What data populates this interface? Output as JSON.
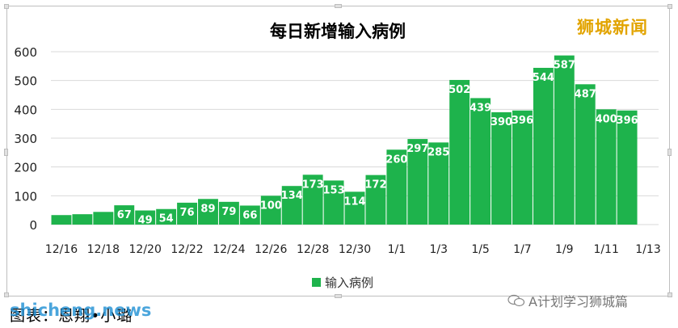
{
  "chart_data": {
    "type": "bar",
    "title": "每日新增输入病例",
    "categories": [
      "12/16",
      "12/17",
      "12/18",
      "12/19",
      "12/20",
      "12/21",
      "12/22",
      "12/23",
      "12/24",
      "12/25",
      "12/26",
      "12/27",
      "12/28",
      "12/29",
      "12/30",
      "12/31",
      "1/1",
      "1/2",
      "1/3",
      "1/4",
      "1/5",
      "1/6",
      "1/7",
      "1/8",
      "1/9",
      "1/10",
      "1/11",
      "1/12",
      "1/13"
    ],
    "x_tick_labels": [
      "12/16",
      "12/18",
      "12/20",
      "12/22",
      "12/24",
      "12/26",
      "12/28",
      "12/30",
      "1/1",
      "1/3",
      "1/5",
      "1/7",
      "1/9",
      "1/11",
      "1/13"
    ],
    "series": [
      {
        "name": "输入病例",
        "color": "#1eb34c",
        "values": [
          33,
          36,
          44,
          67,
          49,
          54,
          76,
          89,
          79,
          66,
          100,
          134,
          173,
          153,
          114,
          172,
          260,
          297,
          285,
          502,
          439,
          390,
          396,
          544,
          587,
          487,
          400,
          396,
          null
        ]
      }
    ],
    "value_labels": [
      "",
      "",
      "",
      "67",
      "49",
      "54",
      "76",
      "89",
      "79",
      "66",
      "100",
      "134",
      "173",
      "153",
      "114",
      "172",
      "260",
      "297",
      "285",
      "502",
      "439",
      "390",
      "396",
      "544",
      "587",
      "487",
      "400",
      "396",
      ""
    ],
    "y_ticks": [
      "0",
      "100",
      "200",
      "300",
      "400",
      "500",
      "600"
    ],
    "ylim": [
      0,
      600
    ],
    "grid": true,
    "legend": "bottom"
  },
  "watermark": "狮城新闻",
  "caption": "图表：恩翔•小璐",
  "site_logo": "shicheng.news",
  "wechat_account": "A计划学习狮城篇"
}
